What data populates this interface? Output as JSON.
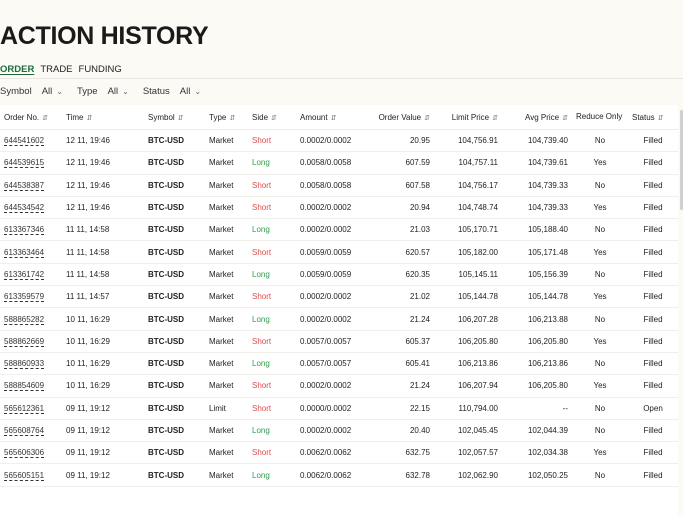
{
  "page": {
    "title": "ACTION HISTORY"
  },
  "tabs": [
    {
      "label": "ORDER",
      "active": true
    },
    {
      "label": "TRADE",
      "active": false
    },
    {
      "label": "FUNDING",
      "active": false
    }
  ],
  "filters": [
    {
      "label": "Symbol",
      "value": "All"
    },
    {
      "label": "Type",
      "value": "All"
    },
    {
      "label": "Status",
      "value": "All"
    }
  ],
  "colors": {
    "long": "#2e9d4a",
    "short": "#e04b4b",
    "accent": "#1e6b3a"
  },
  "table": {
    "headers": [
      "Order No.",
      "Time",
      "Symbol",
      "Type",
      "Side",
      "Amount",
      "Order Value",
      "Limit Price",
      "Avg Price",
      "Reduce Only",
      "Status"
    ],
    "rows": [
      {
        "order_no": "644541602",
        "time": "12 11, 19:46",
        "symbol": "BTC-USD",
        "type": "Market",
        "side": "Short",
        "amount": "0.0002/0.0002",
        "order_value": "20.95",
        "limit_price": "104,756.91",
        "avg_price": "104,739.40",
        "reduce_only": "No",
        "status": "Filled"
      },
      {
        "order_no": "644539615",
        "time": "12 11, 19:46",
        "symbol": "BTC-USD",
        "type": "Market",
        "side": "Long",
        "amount": "0.0058/0.0058",
        "order_value": "607.59",
        "limit_price": "104,757.11",
        "avg_price": "104,739.61",
        "reduce_only": "Yes",
        "status": "Filled"
      },
      {
        "order_no": "644538387",
        "time": "12 11, 19:46",
        "symbol": "BTC-USD",
        "type": "Market",
        "side": "Short",
        "amount": "0.0058/0.0058",
        "order_value": "607.58",
        "limit_price": "104,756.17",
        "avg_price": "104,739.33",
        "reduce_only": "No",
        "status": "Filled"
      },
      {
        "order_no": "644534542",
        "time": "12 11, 19:46",
        "symbol": "BTC-USD",
        "type": "Market",
        "side": "Short",
        "amount": "0.0002/0.0002",
        "order_value": "20.94",
        "limit_price": "104,748.74",
        "avg_price": "104,739.33",
        "reduce_only": "Yes",
        "status": "Filled"
      },
      {
        "order_no": "613367346",
        "time": "11 11, 14:58",
        "symbol": "BTC-USD",
        "type": "Market",
        "side": "Long",
        "amount": "0.0002/0.0002",
        "order_value": "21.03",
        "limit_price": "105,170.71",
        "avg_price": "105,188.40",
        "reduce_only": "No",
        "status": "Filled"
      },
      {
        "order_no": "613363464",
        "time": "11 11, 14:58",
        "symbol": "BTC-USD",
        "type": "Market",
        "side": "Short",
        "amount": "0.0059/0.0059",
        "order_value": "620.57",
        "limit_price": "105,182.00",
        "avg_price": "105,171.48",
        "reduce_only": "Yes",
        "status": "Filled"
      },
      {
        "order_no": "613361742",
        "time": "11 11, 14:58",
        "symbol": "BTC-USD",
        "type": "Market",
        "side": "Long",
        "amount": "0.0059/0.0059",
        "order_value": "620.35",
        "limit_price": "105,145.11",
        "avg_price": "105,156.39",
        "reduce_only": "No",
        "status": "Filled"
      },
      {
        "order_no": "613359579",
        "time": "11 11, 14:57",
        "symbol": "BTC-USD",
        "type": "Market",
        "side": "Short",
        "amount": "0.0002/0.0002",
        "order_value": "21.02",
        "limit_price": "105,144.78",
        "avg_price": "105,144.78",
        "reduce_only": "Yes",
        "status": "Filled"
      },
      {
        "order_no": "588865282",
        "time": "10 11, 16:29",
        "symbol": "BTC-USD",
        "type": "Market",
        "side": "Long",
        "amount": "0.0002/0.0002",
        "order_value": "21.24",
        "limit_price": "106,207.28",
        "avg_price": "106,213.88",
        "reduce_only": "No",
        "status": "Filled"
      },
      {
        "order_no": "588862669",
        "time": "10 11, 16:29",
        "symbol": "BTC-USD",
        "type": "Market",
        "side": "Short",
        "amount": "0.0057/0.0057",
        "order_value": "605.37",
        "limit_price": "106,205.80",
        "avg_price": "106,205.80",
        "reduce_only": "Yes",
        "status": "Filled"
      },
      {
        "order_no": "588860933",
        "time": "10 11, 16:29",
        "symbol": "BTC-USD",
        "type": "Market",
        "side": "Long",
        "amount": "0.0057/0.0057",
        "order_value": "605.41",
        "limit_price": "106,213.86",
        "avg_price": "106,213.86",
        "reduce_only": "No",
        "status": "Filled"
      },
      {
        "order_no": "588854609",
        "time": "10 11, 16:29",
        "symbol": "BTC-USD",
        "type": "Market",
        "side": "Short",
        "amount": "0.0002/0.0002",
        "order_value": "21.24",
        "limit_price": "106,207.94",
        "avg_price": "106,205.80",
        "reduce_only": "Yes",
        "status": "Filled"
      },
      {
        "order_no": "565612361",
        "time": "09 11, 19:12",
        "symbol": "BTC-USD",
        "type": "Limit",
        "side": "Short",
        "amount": "0.0000/0.0002",
        "order_value": "22.15",
        "limit_price": "110,794.00",
        "avg_price": "--",
        "reduce_only": "No",
        "status": "Open"
      },
      {
        "order_no": "565608764",
        "time": "09 11, 19:12",
        "symbol": "BTC-USD",
        "type": "Market",
        "side": "Long",
        "amount": "0.0002/0.0002",
        "order_value": "20.40",
        "limit_price": "102,045.45",
        "avg_price": "102,044.39",
        "reduce_only": "No",
        "status": "Filled"
      },
      {
        "order_no": "565606306",
        "time": "09 11, 19:12",
        "symbol": "BTC-USD",
        "type": "Market",
        "side": "Short",
        "amount": "0.0062/0.0062",
        "order_value": "632.75",
        "limit_price": "102,057.57",
        "avg_price": "102,034.38",
        "reduce_only": "Yes",
        "status": "Filled"
      },
      {
        "order_no": "565605151",
        "time": "09 11, 19:12",
        "symbol": "BTC-USD",
        "type": "Market",
        "side": "Long",
        "amount": "0.0062/0.0062",
        "order_value": "632.78",
        "limit_price": "102,062.90",
        "avg_price": "102,050.25",
        "reduce_only": "No",
        "status": "Filled"
      }
    ]
  }
}
